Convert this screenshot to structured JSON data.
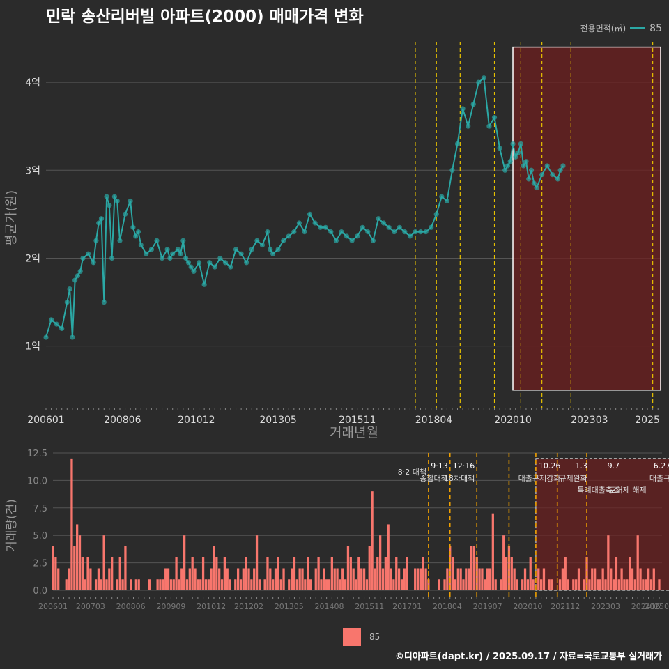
{
  "title": "민락 송산리버빌 아파트(2000) 매매가격 변화",
  "legend": {
    "title": "전용면적(㎡)",
    "series_label": "85",
    "bar_label": "85"
  },
  "footer": "©디아파트(dapt.kr) / 2025.09.17 / 자료=국토교통부 실거래가",
  "colors": {
    "line": "#2ba8a5",
    "bar": "#f8766d",
    "policy": "#e8c200",
    "grid": "#555555",
    "highlight": "#6e1f1f"
  },
  "chart_data": [
    {
      "type": "line",
      "title": "민락 송산리버빌 아파트(2000) 매매가격 변화",
      "xlabel": "거래년월",
      "ylabel": "평균가(원)",
      "x_unit": "months since 2006-01",
      "xlim": [
        0,
        233
      ],
      "ylim": [
        0.3,
        4.5
      ],
      "y_unit": "억원",
      "x_ticks": [
        {
          "m": 0,
          "label": "200601"
        },
        {
          "m": 29,
          "label": "200806"
        },
        {
          "m": 57,
          "label": "201012"
        },
        {
          "m": 88,
          "label": "201305"
        },
        {
          "m": 118,
          "label": "201511"
        },
        {
          "m": 147,
          "label": "201804"
        },
        {
          "m": 177,
          "label": "202010"
        },
        {
          "m": 206,
          "label": "202303"
        },
        {
          "m": 228,
          "label": "2025"
        }
      ],
      "y_ticks": [
        {
          "v": 1,
          "label": "1억"
        },
        {
          "v": 2,
          "label": "2억"
        },
        {
          "v": 3,
          "label": "3억"
        },
        {
          "v": 4,
          "label": "4억"
        }
      ],
      "series": [
        {
          "name": "85",
          "x": [
            0,
            2,
            4,
            6,
            8,
            9,
            10,
            11,
            12,
            13,
            14,
            16,
            18,
            19,
            20,
            21,
            22,
            23,
            24,
            25,
            26,
            27,
            28,
            30,
            32,
            33,
            34,
            35,
            36,
            38,
            40,
            42,
            44,
            46,
            47,
            48,
            50,
            51,
            52,
            53,
            54,
            55,
            56,
            58,
            60,
            62,
            64,
            66,
            68,
            70,
            72,
            74,
            76,
            78,
            80,
            82,
            84,
            85,
            86,
            88,
            90,
            92,
            94,
            96,
            98,
            100,
            102,
            104,
            106,
            108,
            110,
            112,
            114,
            116,
            118,
            120,
            122,
            124,
            126,
            128,
            130,
            132,
            134,
            136,
            138,
            140,
            142,
            144,
            146,
            148,
            150,
            152,
            154,
            156,
            158,
            160,
            162,
            164,
            166,
            168,
            170,
            172,
            174,
            175,
            176,
            177,
            178,
            179,
            180,
            181,
            182,
            183,
            184,
            185,
            186,
            188,
            190,
            192,
            194,
            195,
            196
          ],
          "y": [
            1.1,
            1.3,
            1.25,
            1.2,
            1.5,
            1.65,
            1.1,
            1.75,
            1.8,
            1.85,
            2.0,
            2.05,
            1.95,
            2.2,
            2.4,
            2.45,
            1.5,
            2.7,
            2.6,
            2.0,
            2.7,
            2.65,
            2.2,
            2.5,
            2.65,
            2.35,
            2.25,
            2.3,
            2.15,
            2.05,
            2.1,
            2.2,
            2.0,
            2.1,
            2.0,
            2.05,
            2.1,
            2.05,
            2.2,
            2.0,
            1.95,
            1.9,
            1.85,
            1.95,
            1.7,
            1.95,
            1.9,
            2.0,
            1.95,
            1.9,
            2.1,
            2.05,
            1.95,
            2.1,
            2.2,
            2.15,
            2.3,
            2.1,
            2.05,
            2.1,
            2.2,
            2.25,
            2.3,
            2.4,
            2.3,
            2.5,
            2.4,
            2.35,
            2.35,
            2.3,
            2.2,
            2.3,
            2.25,
            2.2,
            2.25,
            2.35,
            2.3,
            2.2,
            2.45,
            2.4,
            2.35,
            2.3,
            2.35,
            2.3,
            2.25,
            2.3,
            2.3,
            2.3,
            2.35,
            2.5,
            2.7,
            2.65,
            3.0,
            3.3,
            3.7,
            3.5,
            3.75,
            4.0,
            4.05,
            3.5,
            3.6,
            3.25,
            3.0,
            3.05,
            3.1,
            3.3,
            3.15,
            3.2,
            3.3,
            3.05,
            3.1,
            2.9,
            3.0,
            2.85,
            2.8,
            2.95,
            3.05,
            2.95,
            2.9,
            3.0,
            3.05
          ]
        }
      ],
      "highlight_region": {
        "x_from": 177,
        "x_to": 233,
        "y_from": 0.5,
        "y_to": 4.4
      },
      "policy_lines_m": [
        140,
        148,
        157,
        170,
        180,
        188,
        199,
        230
      ]
    },
    {
      "type": "bar",
      "xlabel": "",
      "ylabel": "거래량(건)",
      "ylim": [
        0,
        12.5
      ],
      "y_ticks": [
        0,
        2.5,
        5.0,
        7.5,
        10.0,
        12.5
      ],
      "y_tick_labels": [
        "0.0",
        "2.5",
        "5.0",
        "7.5",
        "10.0",
        "12.5"
      ],
      "x_ticks": [
        {
          "m": 0,
          "label": "200601"
        },
        {
          "m": 14,
          "label": "200703"
        },
        {
          "m": 29,
          "label": "200806"
        },
        {
          "m": 44,
          "label": "200909"
        },
        {
          "m": 59,
          "label": "201012"
        },
        {
          "m": 73,
          "label": "201202"
        },
        {
          "m": 88,
          "label": "201305"
        },
        {
          "m": 103,
          "label": "201408"
        },
        {
          "m": 118,
          "label": "201511"
        },
        {
          "m": 132,
          "label": "201701"
        },
        {
          "m": 147,
          "label": "201804"
        },
        {
          "m": 162,
          "label": "201907"
        },
        {
          "m": 177,
          "label": "202010"
        },
        {
          "m": 191,
          "label": "202112"
        },
        {
          "m": 206,
          "label": "202303"
        },
        {
          "m": 221,
          "label": "202406"
        },
        {
          "m": 234,
          "label": "202509"
        }
      ],
      "values": [
        4,
        3,
        2,
        0,
        0,
        1,
        2,
        12,
        4,
        6,
        5,
        3,
        1,
        3,
        2,
        0,
        1,
        2,
        1,
        5,
        1,
        2,
        3,
        0,
        1,
        3,
        1,
        4,
        0,
        1,
        0,
        1,
        1,
        0,
        0,
        0,
        1,
        0,
        0,
        1,
        1,
        1,
        2,
        2,
        1,
        1,
        3,
        1,
        2,
        5,
        1,
        2,
        3,
        2,
        1,
        1,
        3,
        1,
        1,
        2,
        4,
        3,
        2,
        1,
        3,
        2,
        1,
        0,
        1,
        2,
        1,
        2,
        3,
        2,
        1,
        2,
        5,
        1,
        0,
        1,
        3,
        2,
        1,
        2,
        3,
        1,
        2,
        0,
        1,
        2,
        3,
        1,
        2,
        2,
        1,
        3,
        1,
        0,
        2,
        3,
        1,
        2,
        1,
        1,
        3,
        2,
        2,
        1,
        2,
        1,
        4,
        3,
        2,
        1,
        3,
        2,
        2,
        1,
        4,
        9,
        2,
        3,
        5,
        2,
        3,
        6,
        2,
        1,
        3,
        2,
        1,
        2,
        3,
        0,
        0,
        2,
        2,
        2,
        3,
        2,
        1,
        0,
        0,
        0,
        1,
        0,
        1,
        2,
        4,
        3,
        1,
        2,
        2,
        1,
        2,
        2,
        4,
        4,
        3,
        2,
        2,
        1,
        2,
        2,
        7,
        1,
        0,
        1,
        5,
        3,
        4,
        3,
        2,
        1,
        0,
        1,
        2,
        1,
        3,
        1,
        0,
        2,
        1,
        2,
        0,
        1,
        1,
        0,
        0,
        1,
        2,
        3,
        1,
        0,
        1,
        1,
        2,
        0,
        1,
        3,
        1,
        2,
        2,
        1,
        1,
        2,
        1,
        5,
        2,
        1,
        3,
        1,
        2,
        1,
        1,
        3,
        2,
        1,
        5,
        2,
        1,
        1,
        2,
        1,
        2,
        0,
        1
      ],
      "highlight_region": {
        "x_from": 180,
        "x_to": 233,
        "y_from": 0,
        "y_to": 12
      },
      "policy_lines_m": [
        140,
        148,
        158,
        170,
        180,
        188,
        199,
        230
      ],
      "annotations": [
        {
          "m": 140,
          "date": "",
          "text": "8·2 대책"
        },
        {
          "m": 148,
          "date": "9·13",
          "text": "종합대책"
        },
        {
          "m": 158,
          "date": "12·16",
          "text": "18차대책"
        },
        {
          "m": 190,
          "date": "10.26",
          "text": "대출규제강화"
        },
        {
          "m": 200,
          "date": "1.3",
          "text": "규제완화"
        },
        {
          "m": 212,
          "date": "9.7",
          "text": "특례대출축소"
        },
        {
          "m": 222,
          "date": "",
          "text": "토허제 해제"
        },
        {
          "m": 231,
          "date": "6.27",
          "text": "대출규"
        }
      ]
    }
  ]
}
